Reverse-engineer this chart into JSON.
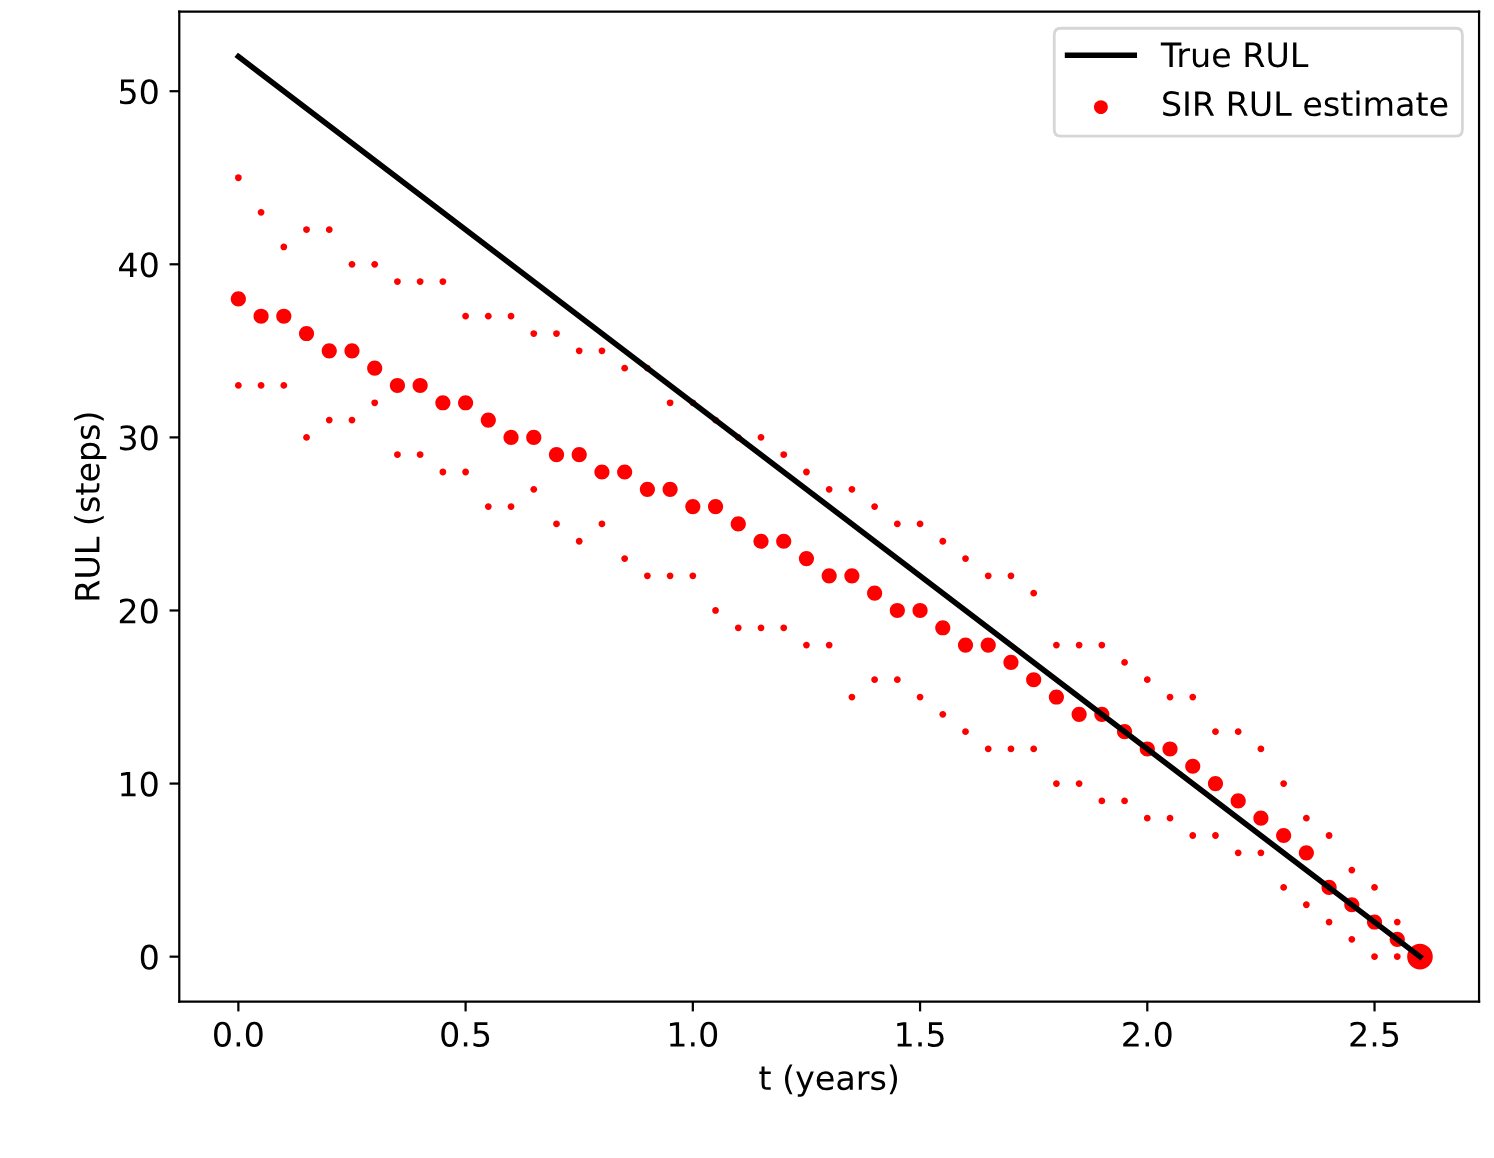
{
  "chart_data": {
    "type": "bubble",
    "xlabel": "t (years)",
    "ylabel": "RUL (steps)",
    "xlim": [
      -0.13,
      2.73
    ],
    "ylim": [
      -2.6,
      54.6
    ],
    "xticks": [
      {
        "value": 0,
        "label": "0.0"
      },
      {
        "value": 0.5,
        "label": "0.5"
      },
      {
        "value": 1,
        "label": "1.0"
      },
      {
        "value": 1.5,
        "label": "1.5"
      },
      {
        "value": 2,
        "label": "2.0"
      },
      {
        "value": 2.5,
        "label": "2.5"
      }
    ],
    "yticks": [
      0,
      10,
      20,
      30,
      40,
      50
    ],
    "grid": false,
    "legend": "top right",
    "series": [
      {
        "name": "True RUL",
        "type": "line",
        "color": "#000000",
        "line_style": "solid",
        "marker": "none",
        "x": [
          0,
          2.6
        ],
        "values": [
          52,
          0
        ]
      },
      {
        "name": "SIR RUL estimate",
        "color": "#ff0000",
        "marker": "circle",
        "x": [
          0,
          0,
          0,
          0.05,
          0.05,
          0.05,
          0.1,
          0.1,
          0.1,
          0.15,
          0.15,
          0.15,
          0.2,
          0.2,
          0.2,
          0.25,
          0.25,
          0.25,
          0.3,
          0.3,
          0.3,
          0.35,
          0.35,
          0.35,
          0.4,
          0.4,
          0.4,
          0.45,
          0.45,
          0.45,
          0.5,
          0.5,
          0.5,
          0.55,
          0.55,
          0.55,
          0.6,
          0.6,
          0.6,
          0.65,
          0.65,
          0.65,
          0.7,
          0.7,
          0.7,
          0.75,
          0.75,
          0.75,
          0.8,
          0.8,
          0.8,
          0.85,
          0.85,
          0.85,
          0.9,
          0.9,
          0.9,
          0.95,
          0.95,
          0.95,
          1,
          1,
          1,
          1.05,
          1.05,
          1.05,
          1.1,
          1.1,
          1.1,
          1.15,
          1.15,
          1.15,
          1.2,
          1.2,
          1.2,
          1.25,
          1.25,
          1.25,
          1.3,
          1.3,
          1.3,
          1.35,
          1.35,
          1.35,
          1.4,
          1.4,
          1.4,
          1.45,
          1.45,
          1.45,
          1.5,
          1.5,
          1.5,
          1.55,
          1.55,
          1.55,
          1.6,
          1.6,
          1.6,
          1.65,
          1.65,
          1.65,
          1.7,
          1.7,
          1.7,
          1.75,
          1.75,
          1.75,
          1.8,
          1.8,
          1.8,
          1.85,
          1.85,
          1.85,
          1.9,
          1.9,
          1.9,
          1.95,
          1.95,
          1.95,
          2,
          2,
          2,
          2.05,
          2.05,
          2.05,
          2.1,
          2.1,
          2.1,
          2.15,
          2.15,
          2.15,
          2.2,
          2.2,
          2.2,
          2.25,
          2.25,
          2.25,
          2.3,
          2.3,
          2.3,
          2.35,
          2.35,
          2.35,
          2.4,
          2.4,
          2.4,
          2.45,
          2.45,
          2.45,
          2.5,
          2.5,
          2.5,
          2.55,
          2.55,
          2.55,
          2.6
        ],
        "values": [
          45,
          38,
          33,
          43,
          37,
          33,
          41,
          37,
          33,
          42,
          36,
          30,
          42,
          35,
          31,
          40,
          35,
          31,
          40,
          34,
          32,
          39,
          33,
          29,
          39,
          33,
          29,
          39,
          32,
          28,
          37,
          32,
          28,
          37,
          31,
          26,
          37,
          30,
          26,
          36,
          30,
          27,
          36,
          29,
          25,
          35,
          29,
          24,
          35,
          28,
          25,
          34,
          28,
          23,
          34,
          27,
          22,
          32,
          27,
          22,
          32,
          26,
          22,
          31,
          26,
          20,
          30,
          25,
          19,
          30,
          24,
          19,
          29,
          24,
          19,
          28,
          23,
          18,
          27,
          22,
          18,
          27,
          22,
          15,
          26,
          21,
          16,
          25,
          20,
          16,
          25,
          20,
          15,
          24,
          19,
          14,
          23,
          18,
          13,
          22,
          18,
          12,
          22,
          17,
          12,
          21,
          16,
          12,
          18,
          15,
          10,
          18,
          14,
          10,
          18,
          14,
          9,
          17,
          13,
          9,
          16,
          12,
          8,
          15,
          12,
          8,
          15,
          11,
          7,
          13,
          10,
          7,
          13,
          9,
          6,
          12,
          8,
          6,
          10,
          7,
          4,
          8,
          6,
          3,
          7,
          4,
          2,
          5,
          3,
          1,
          4,
          2,
          0,
          2,
          1,
          0,
          0
        ],
        "sizes": [
          0.07,
          0.35,
          0.07,
          0.07,
          0.35,
          0.07,
          0.07,
          0.35,
          0.07,
          0.07,
          0.35,
          0.07,
          0.07,
          0.35,
          0.07,
          0.07,
          0.35,
          0.07,
          0.07,
          0.35,
          0.07,
          0.07,
          0.35,
          0.07,
          0.07,
          0.35,
          0.07,
          0.07,
          0.35,
          0.07,
          0.07,
          0.35,
          0.07,
          0.07,
          0.35,
          0.07,
          0.07,
          0.35,
          0.07,
          0.07,
          0.35,
          0.07,
          0.07,
          0.35,
          0.07,
          0.07,
          0.35,
          0.07,
          0.07,
          0.35,
          0.07,
          0.07,
          0.35,
          0.07,
          0.07,
          0.35,
          0.07,
          0.07,
          0.35,
          0.07,
          0.07,
          0.35,
          0.07,
          0.07,
          0.35,
          0.07,
          0.07,
          0.35,
          0.07,
          0.07,
          0.35,
          0.07,
          0.07,
          0.35,
          0.07,
          0.07,
          0.35,
          0.07,
          0.07,
          0.35,
          0.07,
          0.07,
          0.35,
          0.07,
          0.07,
          0.35,
          0.07,
          0.07,
          0.35,
          0.07,
          0.07,
          0.35,
          0.07,
          0.07,
          0.35,
          0.07,
          0.07,
          0.35,
          0.07,
          0.07,
          0.35,
          0.07,
          0.07,
          0.35,
          0.07,
          0.07,
          0.35,
          0.07,
          0.07,
          0.35,
          0.07,
          0.07,
          0.35,
          0.07,
          0.07,
          0.35,
          0.07,
          0.07,
          0.35,
          0.07,
          0.07,
          0.35,
          0.07,
          0.07,
          0.35,
          0.07,
          0.07,
          0.35,
          0.07,
          0.07,
          0.35,
          0.07,
          0.07,
          0.35,
          0.07,
          0.07,
          0.35,
          0.07,
          0.07,
          0.35,
          0.07,
          0.07,
          0.35,
          0.07,
          0.07,
          0.35,
          0.07,
          0.07,
          0.35,
          0.07,
          0.07,
          0.35,
          0.07,
          0.07,
          0.35,
          0.07,
          1
        ]
      }
    ]
  }
}
